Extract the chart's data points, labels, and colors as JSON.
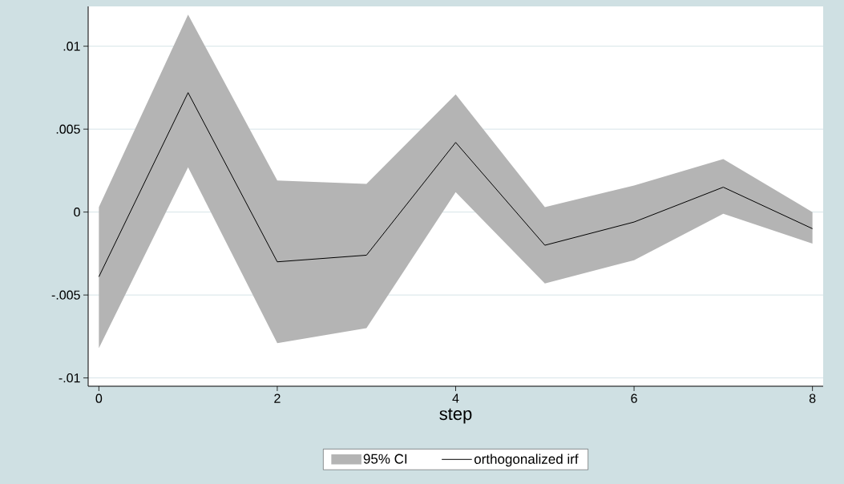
{
  "chart_data": {
    "type": "line",
    "xlabel": "step",
    "x": [
      0,
      1,
      2,
      3,
      4,
      5,
      6,
      7,
      8
    ],
    "series": [
      {
        "name": "orthogonalized irf",
        "color": "#000000",
        "values": [
          -0.0039,
          0.0072,
          -0.003,
          -0.0026,
          0.0042,
          -0.002,
          -0.0006,
          0.0015,
          -0.001
        ],
        "lower": [
          -0.0082,
          0.0027,
          -0.0079,
          -0.007,
          0.0012,
          -0.0043,
          -0.0029,
          -0.0001,
          -0.0019
        ],
        "upper": [
          0.0003,
          0.0119,
          0.0019,
          0.0017,
          0.0071,
          0.0003,
          0.0016,
          0.0032,
          0.0
        ]
      }
    ],
    "annotations": [
      "95% CI"
    ],
    "xlim": [
      -0.12,
      8.12
    ],
    "ylim": [
      -0.0105,
      0.0124
    ],
    "xticks": [
      0,
      2,
      4,
      6,
      8
    ],
    "yticks": [
      {
        "value": -0.01,
        "label": "-.01"
      },
      {
        "value": -0.005,
        "label": "-.005"
      },
      {
        "value": 0,
        "label": "0"
      },
      {
        "value": 0.005,
        "label": ".005"
      },
      {
        "value": 0.01,
        "label": ".01"
      }
    ],
    "grid": "y",
    "legend": "bottom",
    "marker": "none",
    "line_style": "solid"
  }
}
